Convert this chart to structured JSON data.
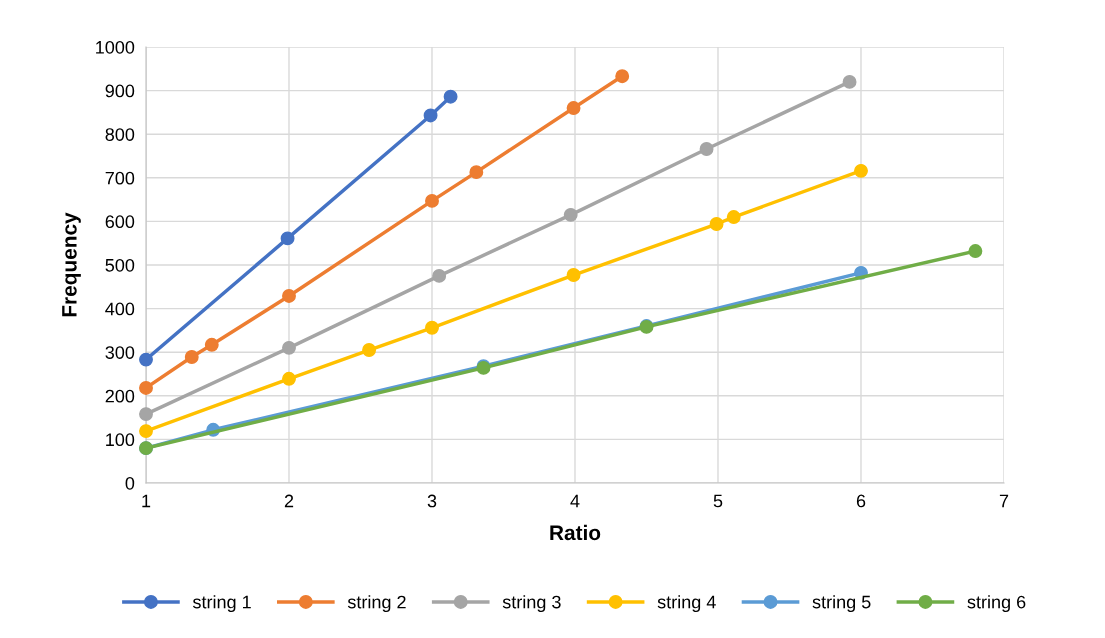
{
  "chart_data": {
    "type": "line",
    "xlabel": "Ratio",
    "ylabel": "Frequency",
    "xlim": [
      1,
      7
    ],
    "xticks": [
      1,
      2,
      3,
      4,
      5,
      6,
      7
    ],
    "ylim": [
      0,
      1000
    ],
    "yticks": [
      0,
      100,
      200,
      300,
      400,
      500,
      600,
      700,
      800,
      900,
      1000
    ],
    "grid": true,
    "legend": "bottom",
    "marker": "circle",
    "series": [
      {
        "name": "string 1",
        "color": "#4472c4",
        "x": [
          1,
          1.99,
          2.99,
          3.13
        ],
        "values": [
          283,
          561,
          843,
          886
        ]
      },
      {
        "name": "string 2",
        "color": "#ed7d31",
        "x": [
          1,
          1.32,
          1.46,
          2.0,
          3.0,
          3.31,
          3.99,
          4.33
        ],
        "values": [
          218,
          289,
          317,
          429,
          647,
          713,
          860,
          933
        ]
      },
      {
        "name": "string 3",
        "color": "#a5a5a5",
        "x": [
          1,
          2.0,
          3.05,
          3.97,
          4.92,
          5.92
        ],
        "values": [
          158,
          310,
          475,
          615,
          766,
          920
        ]
      },
      {
        "name": "string 4",
        "color": "#ffc000",
        "x": [
          1,
          2.0,
          2.56,
          3.0,
          3.99,
          4.99,
          5.11,
          6.0
        ],
        "values": [
          119,
          239,
          305,
          356,
          477,
          594,
          610,
          716
        ]
      },
      {
        "name": "string 5",
        "color": "#5b9bd5",
        "x": [
          1,
          1.47,
          3.36,
          4.5,
          6.0
        ],
        "values": [
          80,
          122,
          268,
          360,
          482
        ]
      },
      {
        "name": "string 6",
        "color": "#70ad47",
        "x": [
          1,
          3.36,
          4.5,
          6.8
        ],
        "values": [
          80,
          264,
          358,
          532
        ]
      }
    ]
  }
}
